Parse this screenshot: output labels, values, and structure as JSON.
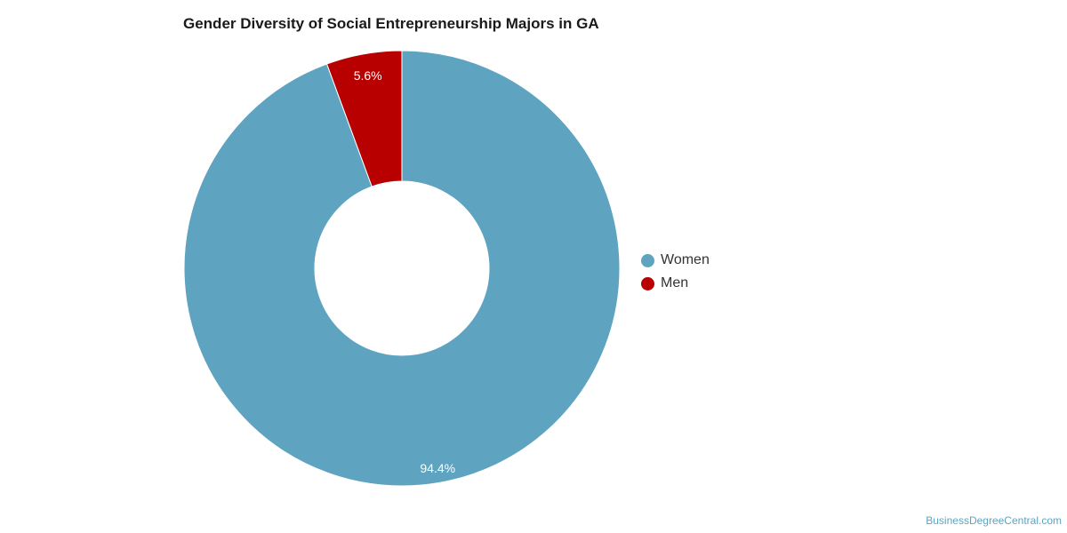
{
  "chart_data": {
    "type": "pie",
    "title": "Gender Diversity of Social Entrepreneurship Majors in GA",
    "categories": [
      "Women",
      "Men"
    ],
    "values": [
      94.4,
      5.6
    ],
    "labels": [
      "94.4%",
      "5.6%"
    ],
    "colors": [
      "#5ea3c0",
      "#b80000"
    ],
    "donut": true,
    "legend_position": "right"
  },
  "source": "BusinessDegreeCentral.com"
}
